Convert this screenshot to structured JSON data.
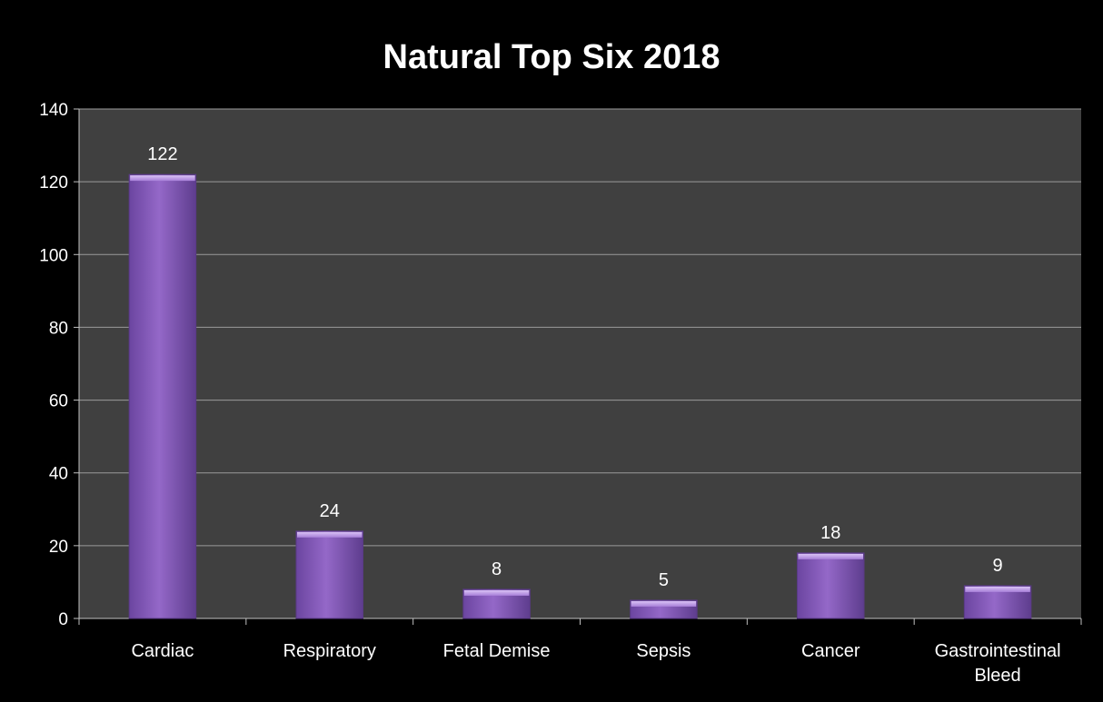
{
  "chart_data": {
    "type": "bar",
    "title": "Natural Top Six 2018",
    "categories": [
      [
        "Cardiac"
      ],
      [
        "Respiratory"
      ],
      [
        "Fetal Demise"
      ],
      [
        "Sepsis"
      ],
      [
        "Cancer"
      ],
      [
        "Gastrointestinal",
        "Bleed"
      ]
    ],
    "values": [
      122,
      24,
      8,
      5,
      18,
      9
    ],
    "data_labels": [
      "122",
      "24",
      "8",
      "5",
      "18",
      "9"
    ],
    "ylim": [
      0,
      140
    ],
    "yticks": [
      0,
      20,
      40,
      60,
      80,
      100,
      120,
      140
    ],
    "grid": true,
    "legend": "none",
    "colors": {
      "background": "#000000",
      "plot_area": "#404040",
      "bar": "#8a5cc0",
      "bar_light": "#c7a6ef",
      "bar_dark": "#5a3a86",
      "grid": "#9a9a9a",
      "text": "#ffffff"
    }
  }
}
